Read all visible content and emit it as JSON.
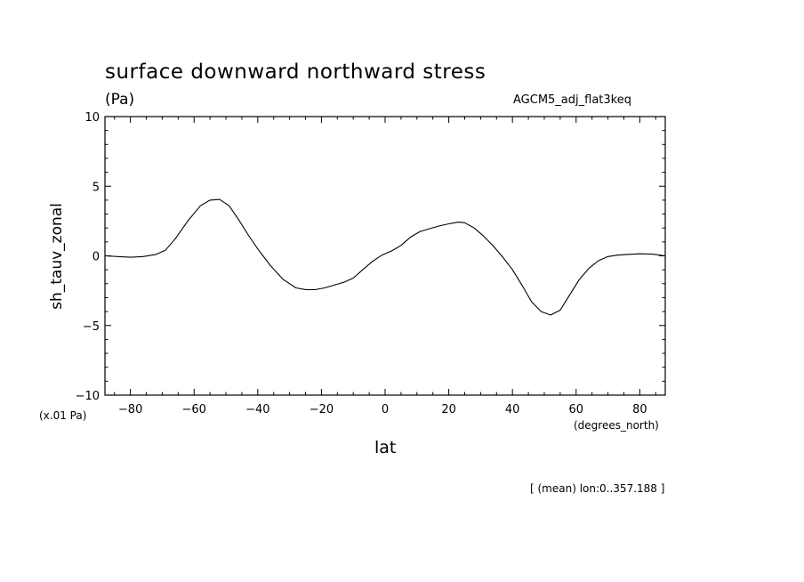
{
  "header": {
    "title": "surface downward northward stress",
    "units": "(Pa)",
    "experiment": "AGCM5_adj_flat3keq",
    "scale_note": "(x.01 Pa)",
    "x_units": "(degrees_north)",
    "footnote": "[ (mean) lon:0..357.188 ]"
  },
  "chart_data": {
    "type": "line",
    "title": "surface downward northward stress",
    "xlabel": "lat",
    "ylabel": "sh_tauv_zonal",
    "xlim": [
      -88,
      88
    ],
    "ylim": [
      -10,
      10
    ],
    "x_ticks": [
      -80,
      -60,
      -40,
      -20,
      0,
      20,
      40,
      60,
      80
    ],
    "x_tick_labels": [
      "-80",
      "-60",
      "-40",
      "-20",
      "0",
      "20",
      "40",
      "60",
      "80"
    ],
    "y_ticks": [
      10,
      5,
      0,
      -5,
      -10
    ],
    "y_tick_labels": [
      "10",
      "5",
      "0",
      "-5",
      "-10"
    ],
    "grid": false,
    "series": [
      {
        "x": [
          -88,
          -84,
          -80,
          -76,
          -72,
          -69,
          -66,
          -62,
          -58,
          -55,
          -52,
          -49,
          -46,
          -43,
          -40,
          -36,
          -32,
          -28,
          -25,
          -22,
          -19,
          -16,
          -13,
          -10,
          -7,
          -4,
          -1,
          2,
          5,
          8,
          11,
          14,
          17,
          20,
          23,
          25,
          28,
          31,
          34,
          37,
          40,
          43,
          46,
          49,
          52,
          55,
          58,
          61,
          64,
          67,
          70,
          73,
          76,
          80,
          84,
          88
        ],
        "y": [
          0.0,
          -0.05,
          -0.1,
          -0.05,
          0.1,
          0.4,
          1.2,
          2.5,
          3.6,
          4.0,
          4.05,
          3.6,
          2.6,
          1.5,
          0.5,
          -0.7,
          -1.7,
          -2.3,
          -2.42,
          -2.43,
          -2.3,
          -2.1,
          -1.9,
          -1.6,
          -1.0,
          -0.4,
          0.05,
          0.35,
          0.75,
          1.35,
          1.75,
          1.95,
          2.15,
          2.3,
          2.42,
          2.38,
          2.0,
          1.4,
          0.7,
          -0.1,
          -1.0,
          -2.1,
          -3.3,
          -4.0,
          -4.25,
          -3.9,
          -2.8,
          -1.7,
          -0.9,
          -0.35,
          -0.05,
          0.05,
          0.1,
          0.15,
          0.12,
          0.0
        ]
      }
    ]
  }
}
